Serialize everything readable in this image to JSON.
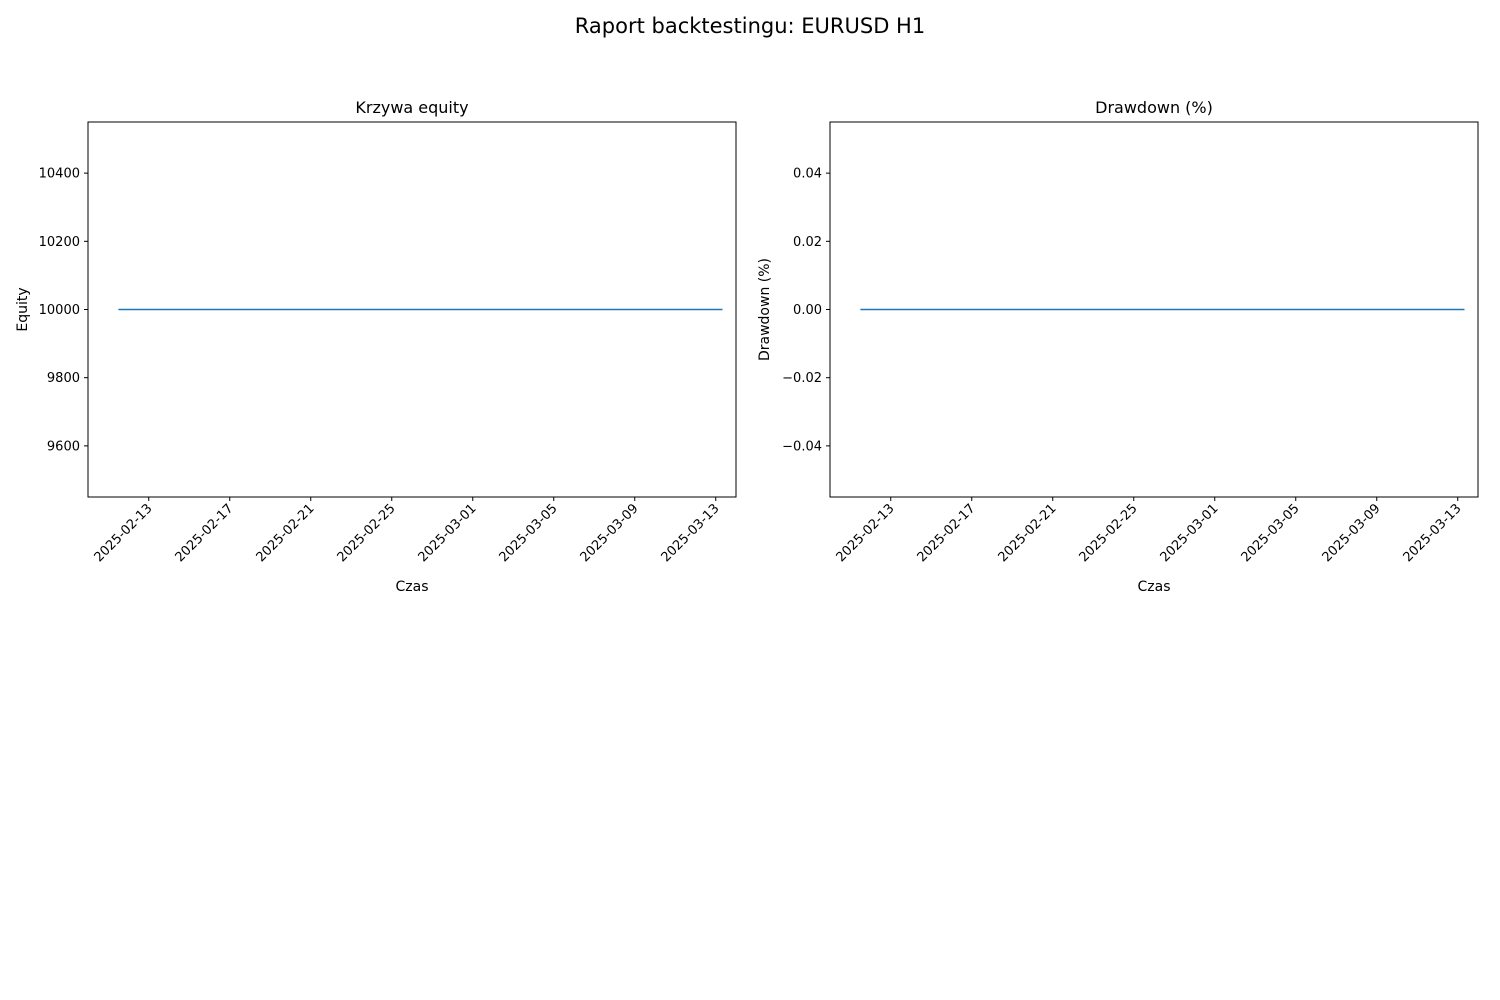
{
  "figure": {
    "title": "Raport backtestingu: EURUSD H1"
  },
  "chart_data": [
    {
      "type": "line",
      "title": "Krzywa equity",
      "xlabel": "Czas",
      "ylabel": "Equity",
      "xlim": [
        "2025-02-10T00:00",
        "2025-03-14T00:00"
      ],
      "ylim": [
        9450,
        10550
      ],
      "xticks": [
        "2025-02-13",
        "2025-02-17",
        "2025-02-21",
        "2025-02-25",
        "2025-03-01",
        "2025-03-05",
        "2025-03-09",
        "2025-03-13"
      ],
      "yticks": [
        {
          "value": 9600,
          "label": "9600"
        },
        {
          "value": 9800,
          "label": "9800"
        },
        {
          "value": 10000,
          "label": "10000"
        },
        {
          "value": 10200,
          "label": "10200"
        },
        {
          "value": 10400,
          "label": "10400"
        }
      ],
      "series": [
        {
          "color": "#1f77b4",
          "x": [
            "2025-02-11T12:00",
            "2025-03-13T08:00"
          ],
          "y": [
            10000,
            10000
          ]
        }
      ],
      "grid": false,
      "legend": "none"
    },
    {
      "type": "line",
      "title": "Drawdown (%)",
      "xlabel": "Czas",
      "ylabel": "Drawdown (%)",
      "xlim": [
        "2025-02-10T00:00",
        "2025-03-14T00:00"
      ],
      "ylim": [
        -0.055,
        0.055
      ],
      "xticks": [
        "2025-02-13",
        "2025-02-17",
        "2025-02-21",
        "2025-02-25",
        "2025-03-01",
        "2025-03-05",
        "2025-03-09",
        "2025-03-13"
      ],
      "yticks": [
        {
          "value": -0.04,
          "label": "−0.04"
        },
        {
          "value": -0.02,
          "label": "−0.02"
        },
        {
          "value": 0,
          "label": "0.00"
        },
        {
          "value": 0.02,
          "label": "0.02"
        },
        {
          "value": 0.04,
          "label": "0.04"
        }
      ],
      "series": [
        {
          "color": "#1f77b4",
          "x": [
            "2025-02-11T12:00",
            "2025-03-13T08:00"
          ],
          "y": [
            0,
            0
          ]
        }
      ],
      "grid": false,
      "legend": "none"
    }
  ]
}
